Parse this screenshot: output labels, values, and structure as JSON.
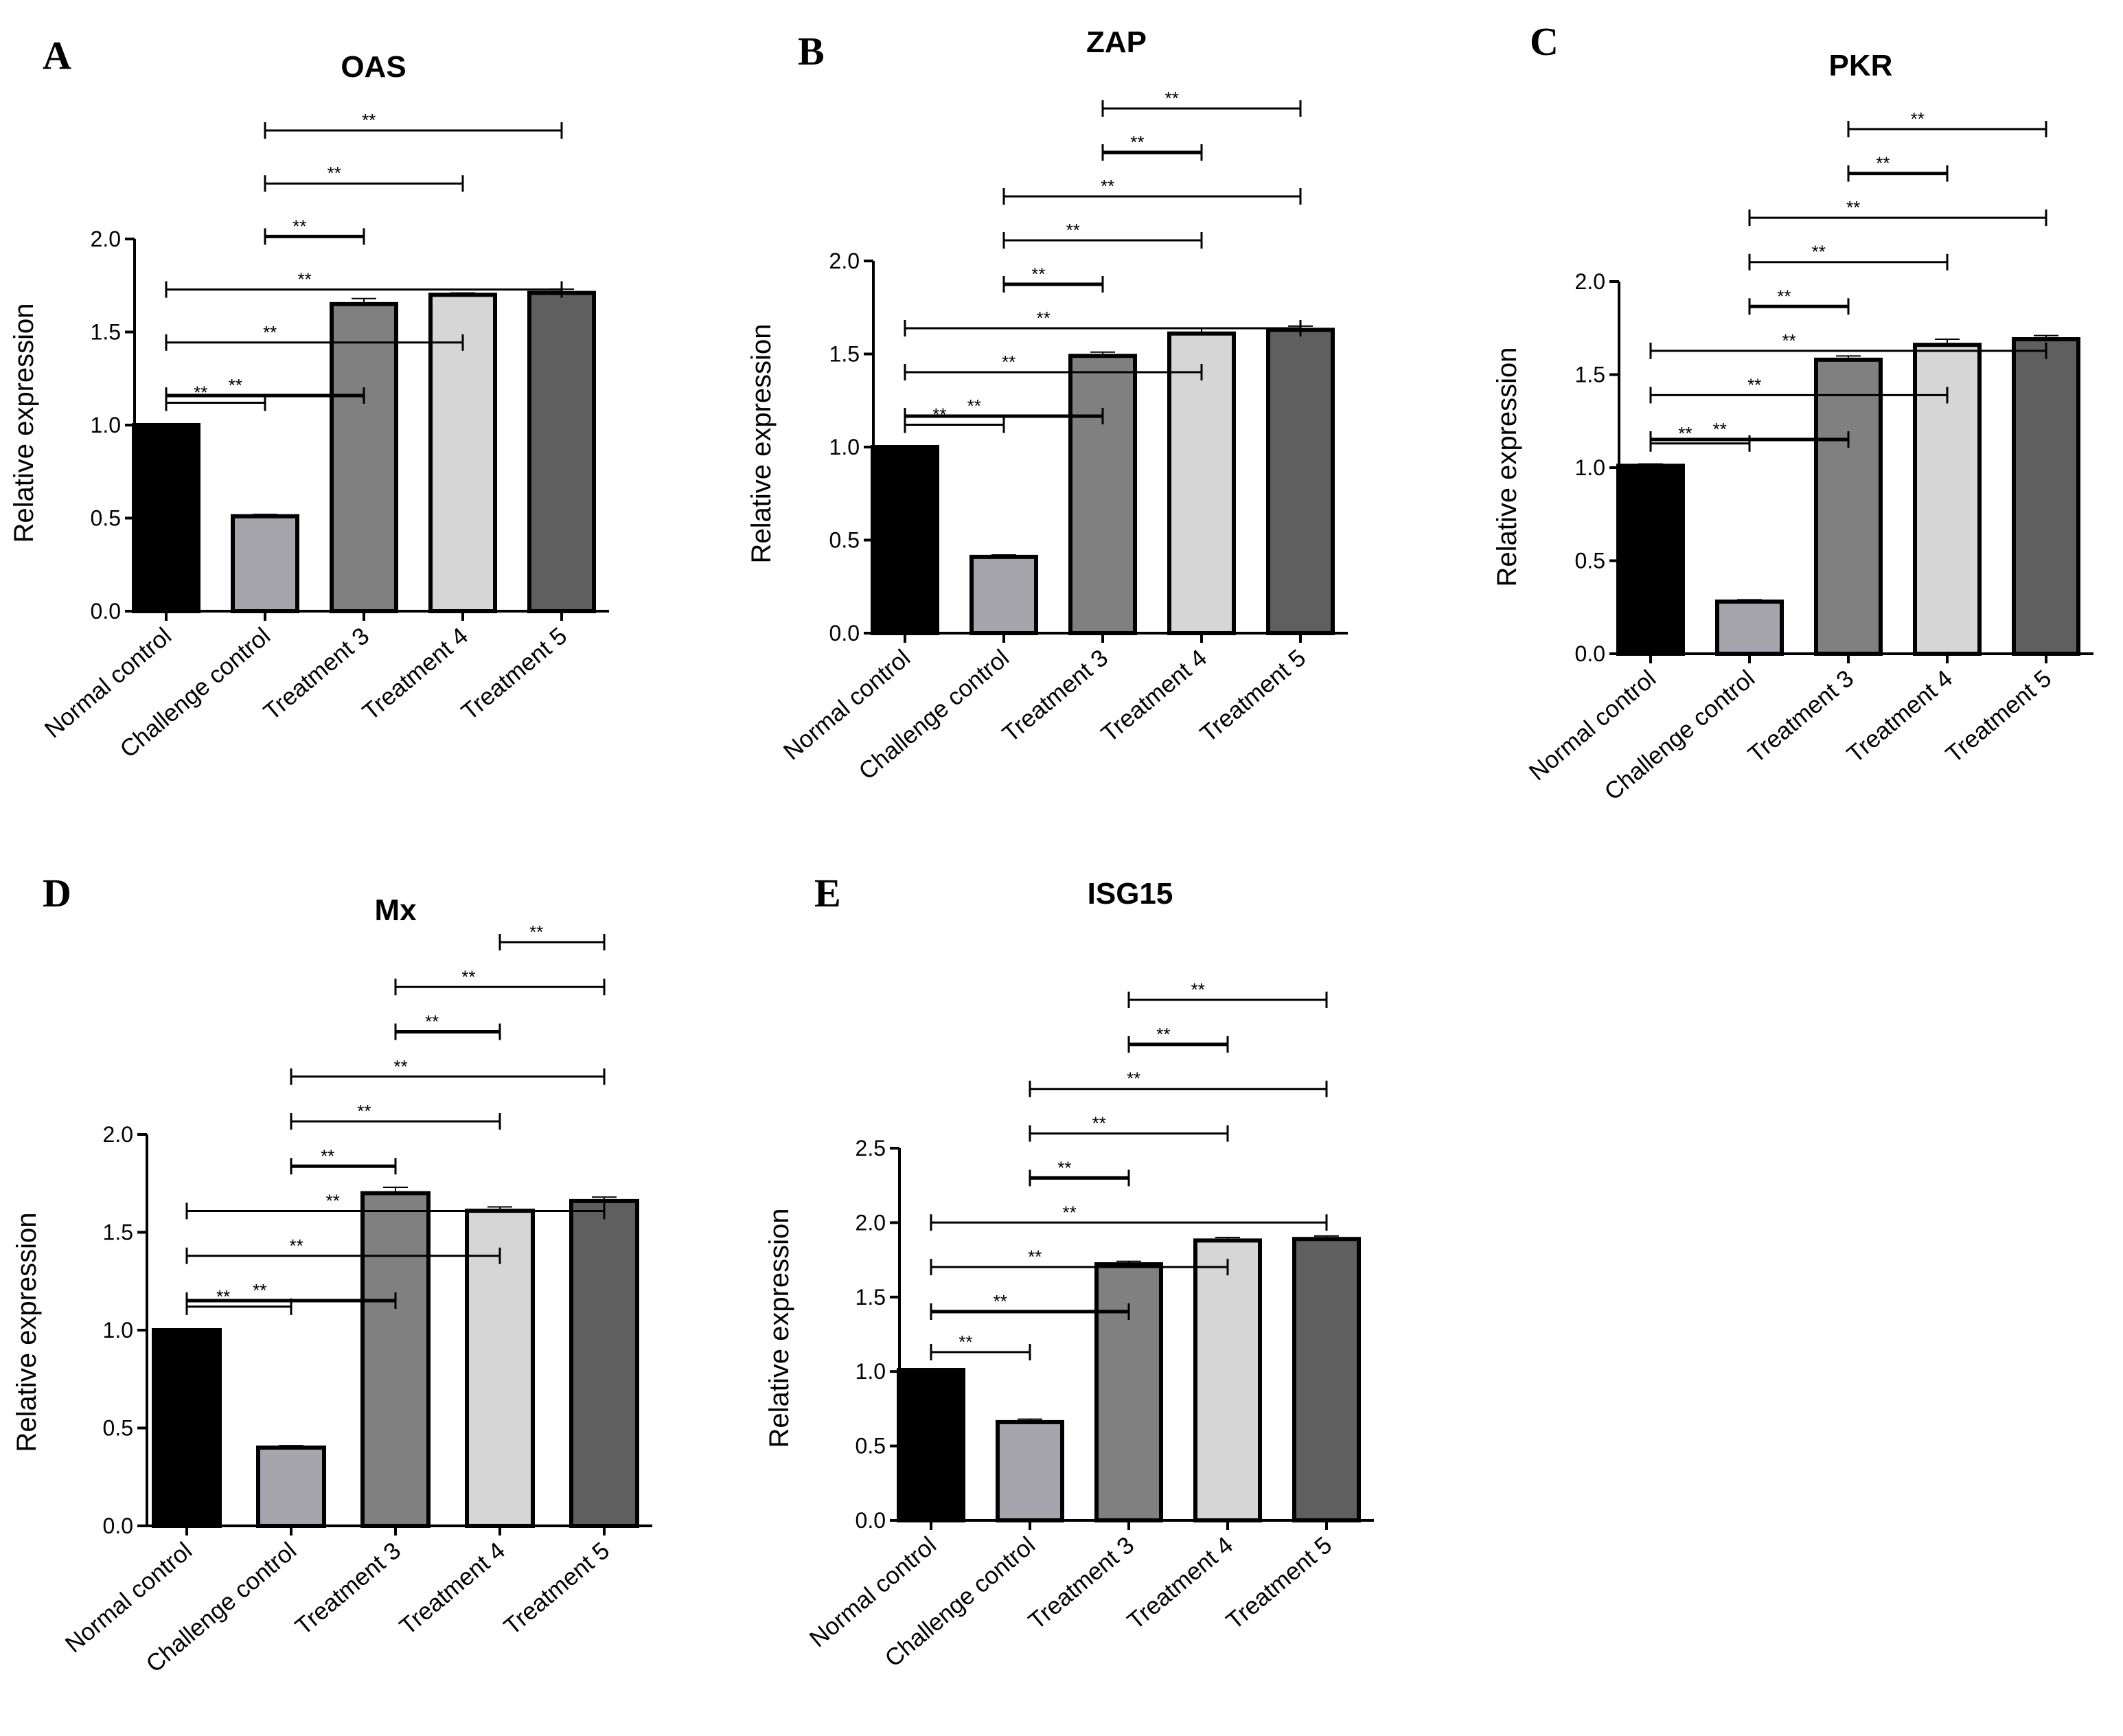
{
  "figure": {
    "colors": {
      "normal_control": "#000000",
      "challenge_control": "#a5a5ab",
      "treatment_3": "#808080",
      "treatment_4": "#d6d6d6",
      "treatment_5": "#5f5f5f",
      "stroke": "#000000"
    }
  },
  "chart_data": [
    {
      "type": "bar",
      "panel": "A",
      "title": "OAS",
      "xlabel": "",
      "ylabel": "Relative expression",
      "ylim": [
        0,
        2.0
      ],
      "yticks": [
        "0.0",
        "0.5",
        "1.0",
        "1.5",
        "2.0"
      ],
      "categories": [
        "Normal control",
        "Challenge control",
        "Treatment 3",
        "Treatment 4",
        "Treatment 5"
      ],
      "values": [
        1.0,
        0.51,
        1.65,
        1.7,
        1.71
      ],
      "errors": [
        0.005,
        0.01,
        0.03,
        0.01,
        0.02
      ],
      "significance": [
        {
          "from": 0,
          "to": 1,
          "label": "**"
        },
        {
          "from": 0,
          "to": 2,
          "label": "**"
        },
        {
          "from": 0,
          "to": 3,
          "label": "**"
        },
        {
          "from": 0,
          "to": 4,
          "label": "**"
        },
        {
          "from": 1,
          "to": 2,
          "label": "**"
        },
        {
          "from": 1,
          "to": 3,
          "label": "**"
        },
        {
          "from": 1,
          "to": 4,
          "label": "**"
        }
      ]
    },
    {
      "type": "bar",
      "panel": "B",
      "title": "ZAP",
      "xlabel": "",
      "ylabel": "Relative expression",
      "ylim": [
        0,
        2.0
      ],
      "yticks": [
        "0.0",
        "0.5",
        "1.0",
        "1.5",
        "2.0"
      ],
      "categories": [
        "Normal control",
        "Challenge control",
        "Treatment 3",
        "Treatment 4",
        "Treatment 5"
      ],
      "values": [
        1.0,
        0.41,
        1.49,
        1.61,
        1.63
      ],
      "errors": [
        0.005,
        0.01,
        0.02,
        0.03,
        0.02
      ],
      "significance": [
        {
          "from": 0,
          "to": 1,
          "label": "**"
        },
        {
          "from": 0,
          "to": 2,
          "label": "**"
        },
        {
          "from": 0,
          "to": 3,
          "label": "**"
        },
        {
          "from": 0,
          "to": 4,
          "label": "**"
        },
        {
          "from": 1,
          "to": 2,
          "label": "**"
        },
        {
          "from": 1,
          "to": 3,
          "label": "**"
        },
        {
          "from": 1,
          "to": 4,
          "label": "**"
        },
        {
          "from": 2,
          "to": 3,
          "label": "**"
        },
        {
          "from": 2,
          "to": 4,
          "label": "**"
        }
      ]
    },
    {
      "type": "bar",
      "panel": "C",
      "title": "PKR",
      "xlabel": "",
      "ylabel": "Relative expression",
      "ylim": [
        0,
        2.0
      ],
      "yticks": [
        "0.0",
        "0.5",
        "1.0",
        "1.5",
        "2.0"
      ],
      "categories": [
        "Normal control",
        "Challenge control",
        "Treatment 3",
        "Treatment 4",
        "Treatment 5"
      ],
      "values": [
        1.01,
        0.28,
        1.58,
        1.66,
        1.69
      ],
      "errors": [
        0.01,
        0.01,
        0.02,
        0.03,
        0.02
      ],
      "significance": [
        {
          "from": 0,
          "to": 1,
          "label": "**"
        },
        {
          "from": 0,
          "to": 2,
          "label": "**"
        },
        {
          "from": 0,
          "to": 3,
          "label": "**"
        },
        {
          "from": 0,
          "to": 4,
          "label": "**"
        },
        {
          "from": 1,
          "to": 2,
          "label": "**"
        },
        {
          "from": 1,
          "to": 3,
          "label": "**"
        },
        {
          "from": 1,
          "to": 4,
          "label": "**"
        },
        {
          "from": 2,
          "to": 3,
          "label": "**"
        },
        {
          "from": 2,
          "to": 4,
          "label": "**"
        }
      ]
    },
    {
      "type": "bar",
      "panel": "D",
      "title": "Mx",
      "xlabel": "",
      "ylabel": "Relative expression",
      "ylim": [
        0,
        2.0
      ],
      "yticks": [
        "0.0",
        "0.5",
        "1.0",
        "1.5",
        "2.0"
      ],
      "categories": [
        "Normal control",
        "Challenge control",
        "Treatment 3",
        "Treatment 4",
        "Treatment 5"
      ],
      "values": [
        1.0,
        0.4,
        1.7,
        1.61,
        1.66
      ],
      "errors": [
        0.005,
        0.01,
        0.03,
        0.02,
        0.02
      ],
      "significance": [
        {
          "from": 0,
          "to": 1,
          "label": "**"
        },
        {
          "from": 0,
          "to": 2,
          "label": "**"
        },
        {
          "from": 0,
          "to": 3,
          "label": "**"
        },
        {
          "from": 0,
          "to": 4,
          "label": "**"
        },
        {
          "from": 1,
          "to": 2,
          "label": "**"
        },
        {
          "from": 1,
          "to": 3,
          "label": "**"
        },
        {
          "from": 1,
          "to": 4,
          "label": "**"
        },
        {
          "from": 2,
          "to": 3,
          "label": "**"
        },
        {
          "from": 2,
          "to": 4,
          "label": "**"
        },
        {
          "from": 3,
          "to": 4,
          "label": "**"
        }
      ]
    },
    {
      "type": "bar",
      "panel": "E",
      "title": "ISG15",
      "xlabel": "",
      "ylabel": "Relative expression",
      "ylim": [
        0,
        2.5
      ],
      "yticks": [
        "0.0",
        "0.5",
        "1.0",
        "1.5",
        "2.0",
        "2.5"
      ],
      "categories": [
        "Normal control",
        "Challenge control",
        "Treatment 3",
        "Treatment 4",
        "Treatment 5"
      ],
      "values": [
        1.01,
        0.66,
        1.72,
        1.88,
        1.89
      ],
      "errors": [
        0.005,
        0.02,
        0.02,
        0.02,
        0.02
      ],
      "significance": [
        {
          "from": 0,
          "to": 1,
          "label": "**"
        },
        {
          "from": 0,
          "to": 2,
          "label": "**"
        },
        {
          "from": 0,
          "to": 3,
          "label": "**"
        },
        {
          "from": 0,
          "to": 4,
          "label": "**"
        },
        {
          "from": 1,
          "to": 2,
          "label": "**"
        },
        {
          "from": 1,
          "to": 3,
          "label": "**"
        },
        {
          "from": 1,
          "to": 4,
          "label": "**"
        },
        {
          "from": 2,
          "to": 3,
          "label": "**"
        },
        {
          "from": 2,
          "to": 4,
          "label": "**"
        }
      ]
    }
  ]
}
